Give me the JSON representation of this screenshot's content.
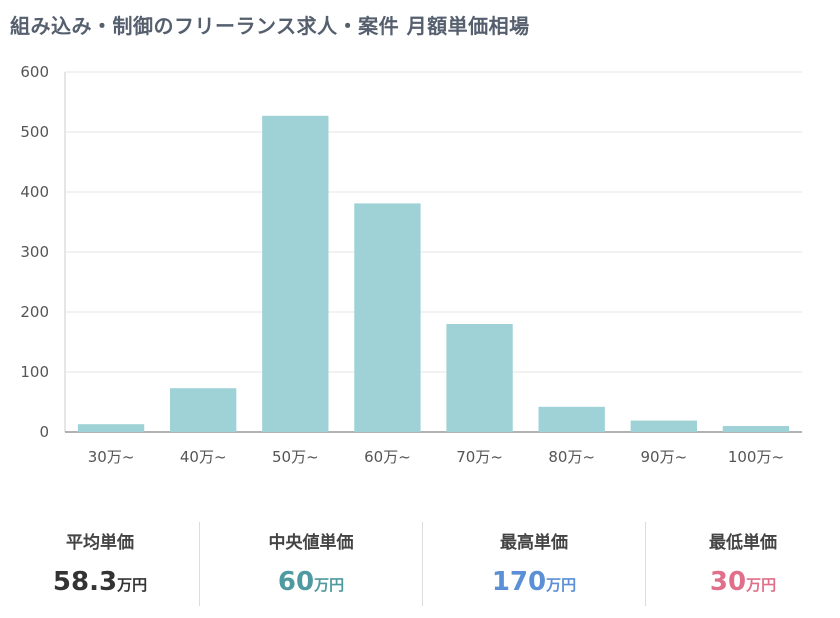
{
  "title": "組み込み・制御のフリーランス求人・案件 月額単価相場",
  "chart_data": {
    "type": "bar",
    "categories": [
      "30万~",
      "40万~",
      "50万~",
      "60万~",
      "70万~",
      "80万~",
      "90万~",
      "100万~"
    ],
    "values": [
      13,
      73,
      527,
      381,
      180,
      42,
      19,
      10
    ],
    "ylim": [
      0,
      600
    ],
    "yticks": [
      "0",
      "100",
      "200",
      "300",
      "400",
      "500",
      "600"
    ],
    "grid": true,
    "bar_color": "#9fd2d6"
  },
  "stats": [
    {
      "label": "平均単価",
      "value": "58.3",
      "unit": "万円",
      "color": "#333333"
    },
    {
      "label": "中央値単価",
      "value": "60",
      "unit": "万円",
      "color": "#4e9aa0"
    },
    {
      "label": "最高単価",
      "value": "170",
      "unit": "万円",
      "color": "#5b8fd6"
    },
    {
      "label": "最低単価",
      "value": "30",
      "unit": "万円",
      "color": "#e0708a"
    }
  ]
}
